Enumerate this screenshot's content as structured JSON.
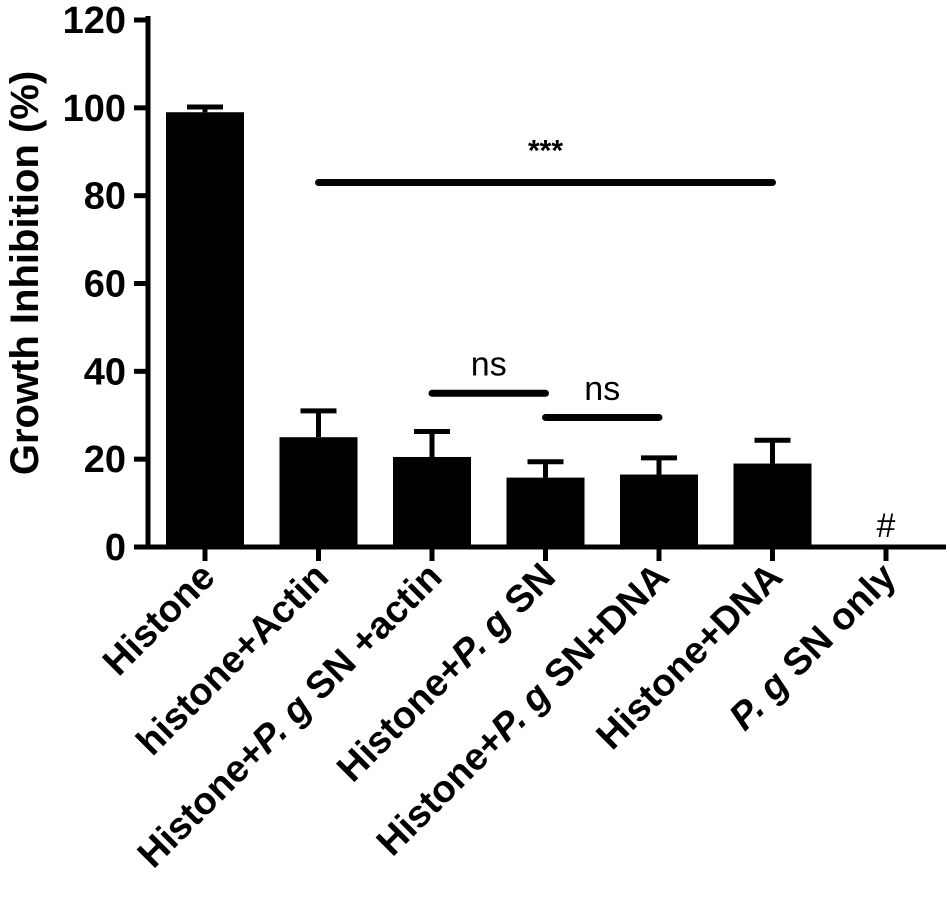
{
  "chart_data": {
    "type": "bar",
    "ylabel": "Growth Inhibition (%)",
    "xlabel": "",
    "title": "",
    "ylim": [
      0,
      120
    ],
    "yticks": [
      0,
      20,
      40,
      60,
      80,
      100,
      120
    ],
    "grid": false,
    "categories": [
      {
        "label": "Histone",
        "parts": [
          {
            "t": "Histone",
            "i": false
          }
        ]
      },
      {
        "label": "histone+Actin",
        "parts": [
          {
            "t": "histone+Actin",
            "i": false
          }
        ]
      },
      {
        "label": "Histone+P. g SN +actin",
        "parts": [
          {
            "t": "Histone+",
            "i": false
          },
          {
            "t": "P. g",
            "i": true
          },
          {
            "t": " SN +actin",
            "i": false
          }
        ]
      },
      {
        "label": "Histone+P. g SN",
        "parts": [
          {
            "t": "Histone+",
            "i": false
          },
          {
            "t": "P. g",
            "i": true
          },
          {
            "t": " SN",
            "i": false
          }
        ]
      },
      {
        "label": "Histone+P. g SN+DNA",
        "parts": [
          {
            "t": "Histone+",
            "i": false
          },
          {
            "t": "P. g",
            "i": true
          },
          {
            "t": " SN+DNA",
            "i": false
          }
        ]
      },
      {
        "label": "Histone+DNA",
        "parts": [
          {
            "t": "Histone+DNA",
            "i": false
          }
        ]
      },
      {
        "label": "P. g SN only",
        "parts": [
          {
            "t": "P. g",
            "i": true
          },
          {
            "t": " SN only",
            "i": false
          }
        ]
      }
    ],
    "values": [
      99,
      25,
      20.5,
      15.8,
      16.5,
      19,
      0
    ],
    "errors": [
      1.2,
      6,
      5.8,
      3.6,
      3.8,
      5.3,
      0
    ],
    "annotations": [
      {
        "text": "***",
        "from": 1,
        "to": 5,
        "y": 83,
        "text_y": 88
      },
      {
        "text": "ns",
        "from": 2,
        "to": 3,
        "y": 35,
        "text_y": 39
      },
      {
        "text": "ns",
        "from": 3,
        "to": 4,
        "y": 29.5,
        "text_y": 33.5
      }
    ],
    "markers": [
      {
        "text": "#",
        "category": 6
      }
    ]
  }
}
